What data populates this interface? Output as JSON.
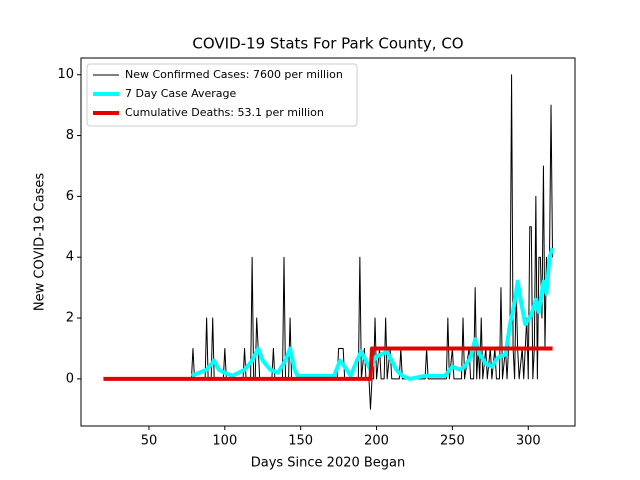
{
  "chart_data": {
    "type": "line",
    "title": "COVID-19 Stats For Park County, CO",
    "xlabel": "Days Since 2020 Began",
    "ylabel": "New COVID-19 Cases",
    "xlim": [
      5.2,
      330.8
    ],
    "ylim": [
      -1.55,
      10.55
    ],
    "xticks": [
      50,
      100,
      150,
      200,
      250,
      300
    ],
    "yticks": [
      0,
      2,
      4,
      6,
      8,
      10
    ],
    "legend": "upper left",
    "series": [
      {
        "name": "New Confirmed Cases: 7600 per million",
        "color": "#000000",
        "width": 1,
        "x": [
          78,
          79,
          80,
          87,
          88,
          89,
          91,
          92,
          93,
          99,
          100,
          101,
          112,
          113,
          114,
          117,
          118,
          119,
          120,
          121,
          122,
          123,
          131,
          132,
          133,
          138,
          139,
          140,
          142,
          143,
          144,
          174,
          175,
          178,
          179,
          188,
          189,
          190,
          192,
          193,
          195,
          196,
          197,
          198,
          199,
          200,
          202,
          203,
          205,
          206,
          207,
          209,
          210,
          215,
          216,
          217,
          232,
          233,
          234,
          246,
          247,
          248,
          250,
          251,
          256,
          257,
          258,
          261,
          262,
          264,
          265,
          266,
          267,
          268,
          269,
          270,
          272,
          273,
          275,
          276,
          278,
          279,
          281,
          282,
          283,
          285,
          286,
          288,
          289,
          290,
          291,
          292,
          293,
          294,
          296,
          297,
          299,
          300,
          301,
          302,
          303,
          304,
          305,
          306,
          307,
          308,
          309,
          310,
          311,
          312,
          313,
          314,
          315,
          316
        ],
        "values": [
          0,
          1,
          0,
          0,
          2,
          0,
          0,
          2,
          0,
          0,
          1,
          0,
          0,
          1,
          0,
          0,
          4,
          0,
          0,
          2,
          1,
          0,
          0,
          1,
          0,
          0,
          4,
          0,
          0,
          2,
          0,
          0,
          1,
          1,
          0,
          0,
          4,
          0,
          1,
          0,
          0,
          -1,
          0,
          0,
          2,
          0,
          1,
          0,
          0,
          2,
          0,
          1,
          0,
          0,
          1,
          0,
          0,
          1,
          0,
          0,
          2,
          0,
          1,
          0,
          0,
          2,
          0,
          1,
          0,
          0,
          3,
          0,
          1,
          0,
          2,
          0,
          1,
          0,
          1,
          0,
          1,
          0,
          0,
          3,
          0,
          1,
          0,
          2,
          10,
          1,
          0,
          3,
          1,
          0,
          1,
          0,
          2,
          0,
          5,
          5,
          0,
          1,
          6,
          0,
          4,
          4,
          2,
          7,
          1,
          4,
          3,
          4,
          9,
          4
        ]
      },
      {
        "name": "7 Day Case Average",
        "color": "#00ffff",
        "width": 4,
        "x": [
          78,
          88,
          93,
          96,
          100,
          105,
          113,
          118,
          122,
          125,
          130,
          135,
          140,
          143,
          146,
          148,
          172,
          176,
          179,
          183,
          187,
          190,
          193,
          196,
          199,
          203,
          207,
          210,
          213,
          217,
          222,
          232,
          238,
          245,
          250,
          255,
          258,
          262,
          265,
          268,
          272,
          276,
          280,
          285,
          288,
          291,
          293,
          295,
          298,
          302,
          305,
          307,
          310,
          312,
          314,
          316
        ],
        "values": [
          0.1,
          0.3,
          0.6,
          0.3,
          0.2,
          0.1,
          0.3,
          0.6,
          1,
          0.6,
          0.3,
          0.2,
          0.6,
          1,
          0.3,
          0.1,
          0.1,
          0.6,
          0.4,
          0.1,
          0.6,
          0.9,
          0.6,
          0.3,
          0.7,
          0.8,
          0.9,
          0.6,
          0.3,
          0.1,
          0,
          0.1,
          0.1,
          0.1,
          0.4,
          0.3,
          0.4,
          0.7,
          1.3,
          0.8,
          0.5,
          0.4,
          0.7,
          0.8,
          1.8,
          2.5,
          3.2,
          2.6,
          1.8,
          2.1,
          2.6,
          2.2,
          3.2,
          2.8,
          4,
          4.3
        ]
      },
      {
        "name": "Cumulative Deaths: 53.1 per million",
        "color": "#e50000",
        "width": 4,
        "x": [
          20,
          196,
          197,
          316
        ],
        "values": [
          0,
          0,
          1,
          1
        ]
      }
    ]
  }
}
